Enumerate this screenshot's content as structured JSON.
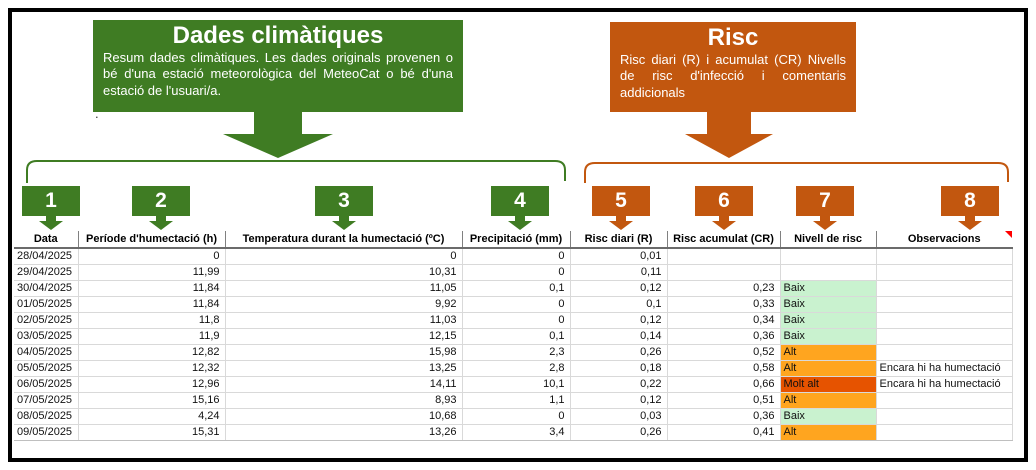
{
  "callouts": {
    "climate": {
      "title": "Dades climàtiques",
      "body": "Resum dades climàtiques. Les dades originals provenen o bé d'una estació meteorològica del MeteoCat o bé d'una estació de l'usuari/a.",
      "color": "#3F7C23"
    },
    "risk": {
      "title": "Risc",
      "body": "Risc diari (R) i acumulat (CR) Nivells de risc d'infecció i comentaris addicionals",
      "color": "#C2570F"
    }
  },
  "stray_dot": ".",
  "markers": [
    {
      "label": "1"
    },
    {
      "label": "2"
    },
    {
      "label": "3"
    },
    {
      "label": "4"
    },
    {
      "label": "5"
    },
    {
      "label": "6"
    },
    {
      "label": "7"
    },
    {
      "label": "8"
    }
  ],
  "colors": {
    "green_annotation": "#3F7C23",
    "orange_annotation": "#C2570F",
    "level_baix_fill": "#C9F2CF",
    "level_alt_fill": "#FFA51F",
    "level_molt_alt_fill": "#E65300",
    "comment_indicator": "#FF0000"
  },
  "table": {
    "columns": [
      {
        "label": "Data"
      },
      {
        "label": "Període d'humectació (h)"
      },
      {
        "label": "Temperatura durant la humectació (ºC)"
      },
      {
        "label": "Precipitació (mm)"
      },
      {
        "label": "Risc diari (R)"
      },
      {
        "label": "Risc acumulat (CR)"
      },
      {
        "label": "Nivell de risc"
      },
      {
        "label": "Observacions"
      }
    ],
    "rows": [
      {
        "date": "28/04/2025",
        "wet_hours": "0",
        "temp": "0",
        "precip": "0",
        "risk_daily": "0,01",
        "risk_cum": "",
        "level": "",
        "level_color": null,
        "notes": ""
      },
      {
        "date": "29/04/2025",
        "wet_hours": "11,99",
        "temp": "10,31",
        "precip": "0",
        "risk_daily": "0,11",
        "risk_cum": "",
        "level": "",
        "level_color": null,
        "notes": ""
      },
      {
        "date": "30/04/2025",
        "wet_hours": "11,84",
        "temp": "11,05",
        "precip": "0,1",
        "risk_daily": "0,12",
        "risk_cum": "0,23",
        "level": "Baix",
        "level_color": "#C9F2CF",
        "notes": ""
      },
      {
        "date": "01/05/2025",
        "wet_hours": "11,84",
        "temp": "9,92",
        "precip": "0",
        "risk_daily": "0,1",
        "risk_cum": "0,33",
        "level": "Baix",
        "level_color": "#C9F2CF",
        "notes": ""
      },
      {
        "date": "02/05/2025",
        "wet_hours": "11,8",
        "temp": "11,03",
        "precip": "0",
        "risk_daily": "0,12",
        "risk_cum": "0,34",
        "level": "Baix",
        "level_color": "#C9F2CF",
        "notes": ""
      },
      {
        "date": "03/05/2025",
        "wet_hours": "11,9",
        "temp": "12,15",
        "precip": "0,1",
        "risk_daily": "0,14",
        "risk_cum": "0,36",
        "level": "Baix",
        "level_color": "#C9F2CF",
        "notes": ""
      },
      {
        "date": "04/05/2025",
        "wet_hours": "12,82",
        "temp": "15,98",
        "precip": "2,3",
        "risk_daily": "0,26",
        "risk_cum": "0,52",
        "level": "Alt",
        "level_color": "#FFA51F",
        "notes": ""
      },
      {
        "date": "05/05/2025",
        "wet_hours": "12,32",
        "temp": "13,25",
        "precip": "2,8",
        "risk_daily": "0,18",
        "risk_cum": "0,58",
        "level": "Alt",
        "level_color": "#FFA51F",
        "notes": "Encara hi ha humectació"
      },
      {
        "date": "06/05/2025",
        "wet_hours": "12,96",
        "temp": "14,11",
        "precip": "10,1",
        "risk_daily": "0,22",
        "risk_cum": "0,66",
        "level": "Molt alt",
        "level_color": "#E65300",
        "notes": "Encara hi ha humectació"
      },
      {
        "date": "07/05/2025",
        "wet_hours": "15,16",
        "temp": "8,93",
        "precip": "1,1",
        "risk_daily": "0,12",
        "risk_cum": "0,51",
        "level": "Alt",
        "level_color": "#FFA51F",
        "notes": ""
      },
      {
        "date": "08/05/2025",
        "wet_hours": "4,24",
        "temp": "10,68",
        "precip": "0",
        "risk_daily": "0,03",
        "risk_cum": "0,36",
        "level": "Baix",
        "level_color": "#C9F2CF",
        "notes": ""
      },
      {
        "date": "09/05/2025",
        "wet_hours": "15,31",
        "temp": "13,26",
        "precip": "3,4",
        "risk_daily": "0,26",
        "risk_cum": "0,41",
        "level": "Alt",
        "level_color": "#FFA51F",
        "notes": ""
      }
    ]
  }
}
